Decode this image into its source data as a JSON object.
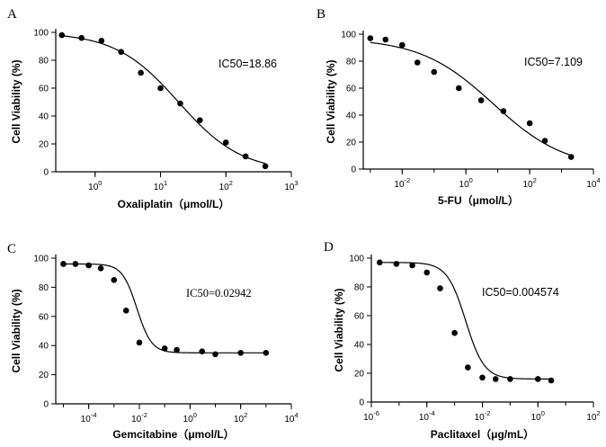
{
  "chart_data": [
    {
      "type": "scatter",
      "panel": "A",
      "ic50_label": "IC50=18.86",
      "ylabel": "Cell Viability (%)",
      "xlabel": "Oxaliplatin（μmol/L）",
      "x_scale": "log10",
      "xlim": [
        0.25,
        1000
      ],
      "ylim": [
        0,
        100
      ],
      "y_ticks": [
        0,
        20,
        40,
        60,
        80,
        100
      ],
      "x_ticks": [
        {
          "value": 1,
          "base": "10",
          "exp": "0"
        },
        {
          "value": 10,
          "base": "10",
          "exp": "1"
        },
        {
          "value": 100,
          "base": "10",
          "exp": "2"
        },
        {
          "value": 1000,
          "base": "10",
          "exp": "3"
        }
      ],
      "fit": {
        "top": 100,
        "bottom": 0,
        "ic50": 18.86,
        "hill": 0.9
      },
      "points": [
        {
          "x": 0.31,
          "y": 98
        },
        {
          "x": 0.62,
          "y": 96
        },
        {
          "x": 1.25,
          "y": 94
        },
        {
          "x": 2.5,
          "y": 86
        },
        {
          "x": 5,
          "y": 71
        },
        {
          "x": 10,
          "y": 60
        },
        {
          "x": 20,
          "y": 49
        },
        {
          "x": 40,
          "y": 37
        },
        {
          "x": 100,
          "y": 21
        },
        {
          "x": 200,
          "y": 11
        },
        {
          "x": 400,
          "y": 4
        }
      ]
    },
    {
      "type": "scatter",
      "panel": "B",
      "ic50_label": "IC50=7.109",
      "ylabel": "Cell Viability (%)",
      "xlabel": "5-FU（μmol/L）",
      "x_scale": "log10",
      "xlim": [
        0.0006,
        10000
      ],
      "ylim": [
        0,
        100
      ],
      "y_ticks": [
        0,
        20,
        40,
        60,
        80,
        100
      ],
      "x_ticks": [
        {
          "value": 0.01,
          "base": "10",
          "exp": "-2"
        },
        {
          "value": 1,
          "base": "10",
          "exp": "0"
        },
        {
          "value": 100,
          "base": "10",
          "exp": "2"
        },
        {
          "value": 10000,
          "base": "10",
          "exp": "4"
        }
      ],
      "fit": {
        "top": 97,
        "bottom": 0,
        "ic50": 7.109,
        "hill": 0.38
      },
      "points": [
        {
          "x": 0.001,
          "y": 97
        },
        {
          "x": 0.003,
          "y": 96
        },
        {
          "x": 0.01,
          "y": 92
        },
        {
          "x": 0.03,
          "y": 79
        },
        {
          "x": 0.1,
          "y": 72
        },
        {
          "x": 0.6,
          "y": 60
        },
        {
          "x": 3,
          "y": 51
        },
        {
          "x": 15,
          "y": 43
        },
        {
          "x": 100,
          "y": 34
        },
        {
          "x": 300,
          "y": 21
        },
        {
          "x": 2000,
          "y": 9
        }
      ]
    },
    {
      "type": "scatter",
      "panel": "C",
      "ic50_label": "IC50=0.02942",
      "ylabel": "Cell Viability (%)",
      "xlabel": "Gemcitabine（μmol/L）",
      "x_scale": "log10",
      "xlim": [
        5e-06,
        10000
      ],
      "ylim": [
        0,
        100
      ],
      "y_ticks": [
        0,
        20,
        40,
        60,
        80,
        100
      ],
      "x_ticks": [
        {
          "value": 0.0001,
          "base": "10",
          "exp": "-4"
        },
        {
          "value": 0.01,
          "base": "10",
          "exp": "-2"
        },
        {
          "value": 1,
          "base": "10",
          "exp": "0"
        },
        {
          "value": 100,
          "base": "10",
          "exp": "2"
        },
        {
          "value": 10000,
          "base": "10",
          "exp": "4"
        }
      ],
      "fit": {
        "top": 96,
        "bottom": 35,
        "ic50": 0.02942,
        "hill": 1.5,
        "center": 0.008
      },
      "points": [
        {
          "x": 1e-05,
          "y": 96
        },
        {
          "x": 3e-05,
          "y": 96
        },
        {
          "x": 0.0001,
          "y": 95
        },
        {
          "x": 0.0003,
          "y": 93
        },
        {
          "x": 0.001,
          "y": 85
        },
        {
          "x": 0.003,
          "y": 64
        },
        {
          "x": 0.01,
          "y": 42
        },
        {
          "x": 0.1,
          "y": 38
        },
        {
          "x": 0.3,
          "y": 37
        },
        {
          "x": 3,
          "y": 36
        },
        {
          "x": 10,
          "y": 34
        },
        {
          "x": 100,
          "y": 35
        },
        {
          "x": 1000,
          "y": 35
        }
      ]
    },
    {
      "type": "scatter",
      "panel": "D",
      "ic50_label": "IC50=0.004574",
      "ylabel": "Cell Viability (%)",
      "xlabel": "Paclitaxel（μg/mL）",
      "x_scale": "log10",
      "xlim": [
        1e-06,
        100
      ],
      "ylim": [
        0,
        100
      ],
      "y_ticks": [
        0,
        20,
        40,
        60,
        80,
        100
      ],
      "x_ticks": [
        {
          "value": 1e-06,
          "base": "10",
          "exp": "-6"
        },
        {
          "value": 0.0001,
          "base": "10",
          "exp": "-4"
        },
        {
          "value": 0.01,
          "base": "10",
          "exp": "-2"
        },
        {
          "value": 1,
          "base": "10",
          "exp": "0"
        },
        {
          "value": 100,
          "base": "10",
          "exp": "2"
        }
      ],
      "fit": {
        "top": 97,
        "bottom": 16,
        "ic50": 0.004574,
        "hill": 1.3,
        "center": 0.0025
      },
      "points": [
        {
          "x": 2e-06,
          "y": 97
        },
        {
          "x": 8e-06,
          "y": 96
        },
        {
          "x": 3e-05,
          "y": 95
        },
        {
          "x": 0.0001,
          "y": 90
        },
        {
          "x": 0.0003,
          "y": 79
        },
        {
          "x": 0.001,
          "y": 48
        },
        {
          "x": 0.003,
          "y": 24
        },
        {
          "x": 0.01,
          "y": 17
        },
        {
          "x": 0.03,
          "y": 16
        },
        {
          "x": 0.1,
          "y": 16
        },
        {
          "x": 1,
          "y": 16
        },
        {
          "x": 3,
          "y": 15
        }
      ]
    }
  ]
}
